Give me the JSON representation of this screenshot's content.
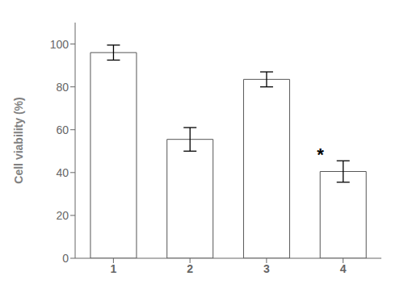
{
  "chart_data": {
    "type": "bar",
    "categories": [
      "1",
      "2",
      "3",
      "4"
    ],
    "values": [
      96.0,
      55.5,
      83.5,
      40.5
    ],
    "errors": [
      3.5,
      5.5,
      3.5,
      5.0
    ],
    "color": "#ffffff",
    "ylabel": "Cell viability (%)",
    "ylim": [
      0,
      110
    ],
    "yticks": [
      0,
      20,
      40,
      60,
      80,
      100
    ],
    "grid": false,
    "annotations": [
      {
        "text": "*",
        "x": "4",
        "y": 48
      }
    ]
  }
}
